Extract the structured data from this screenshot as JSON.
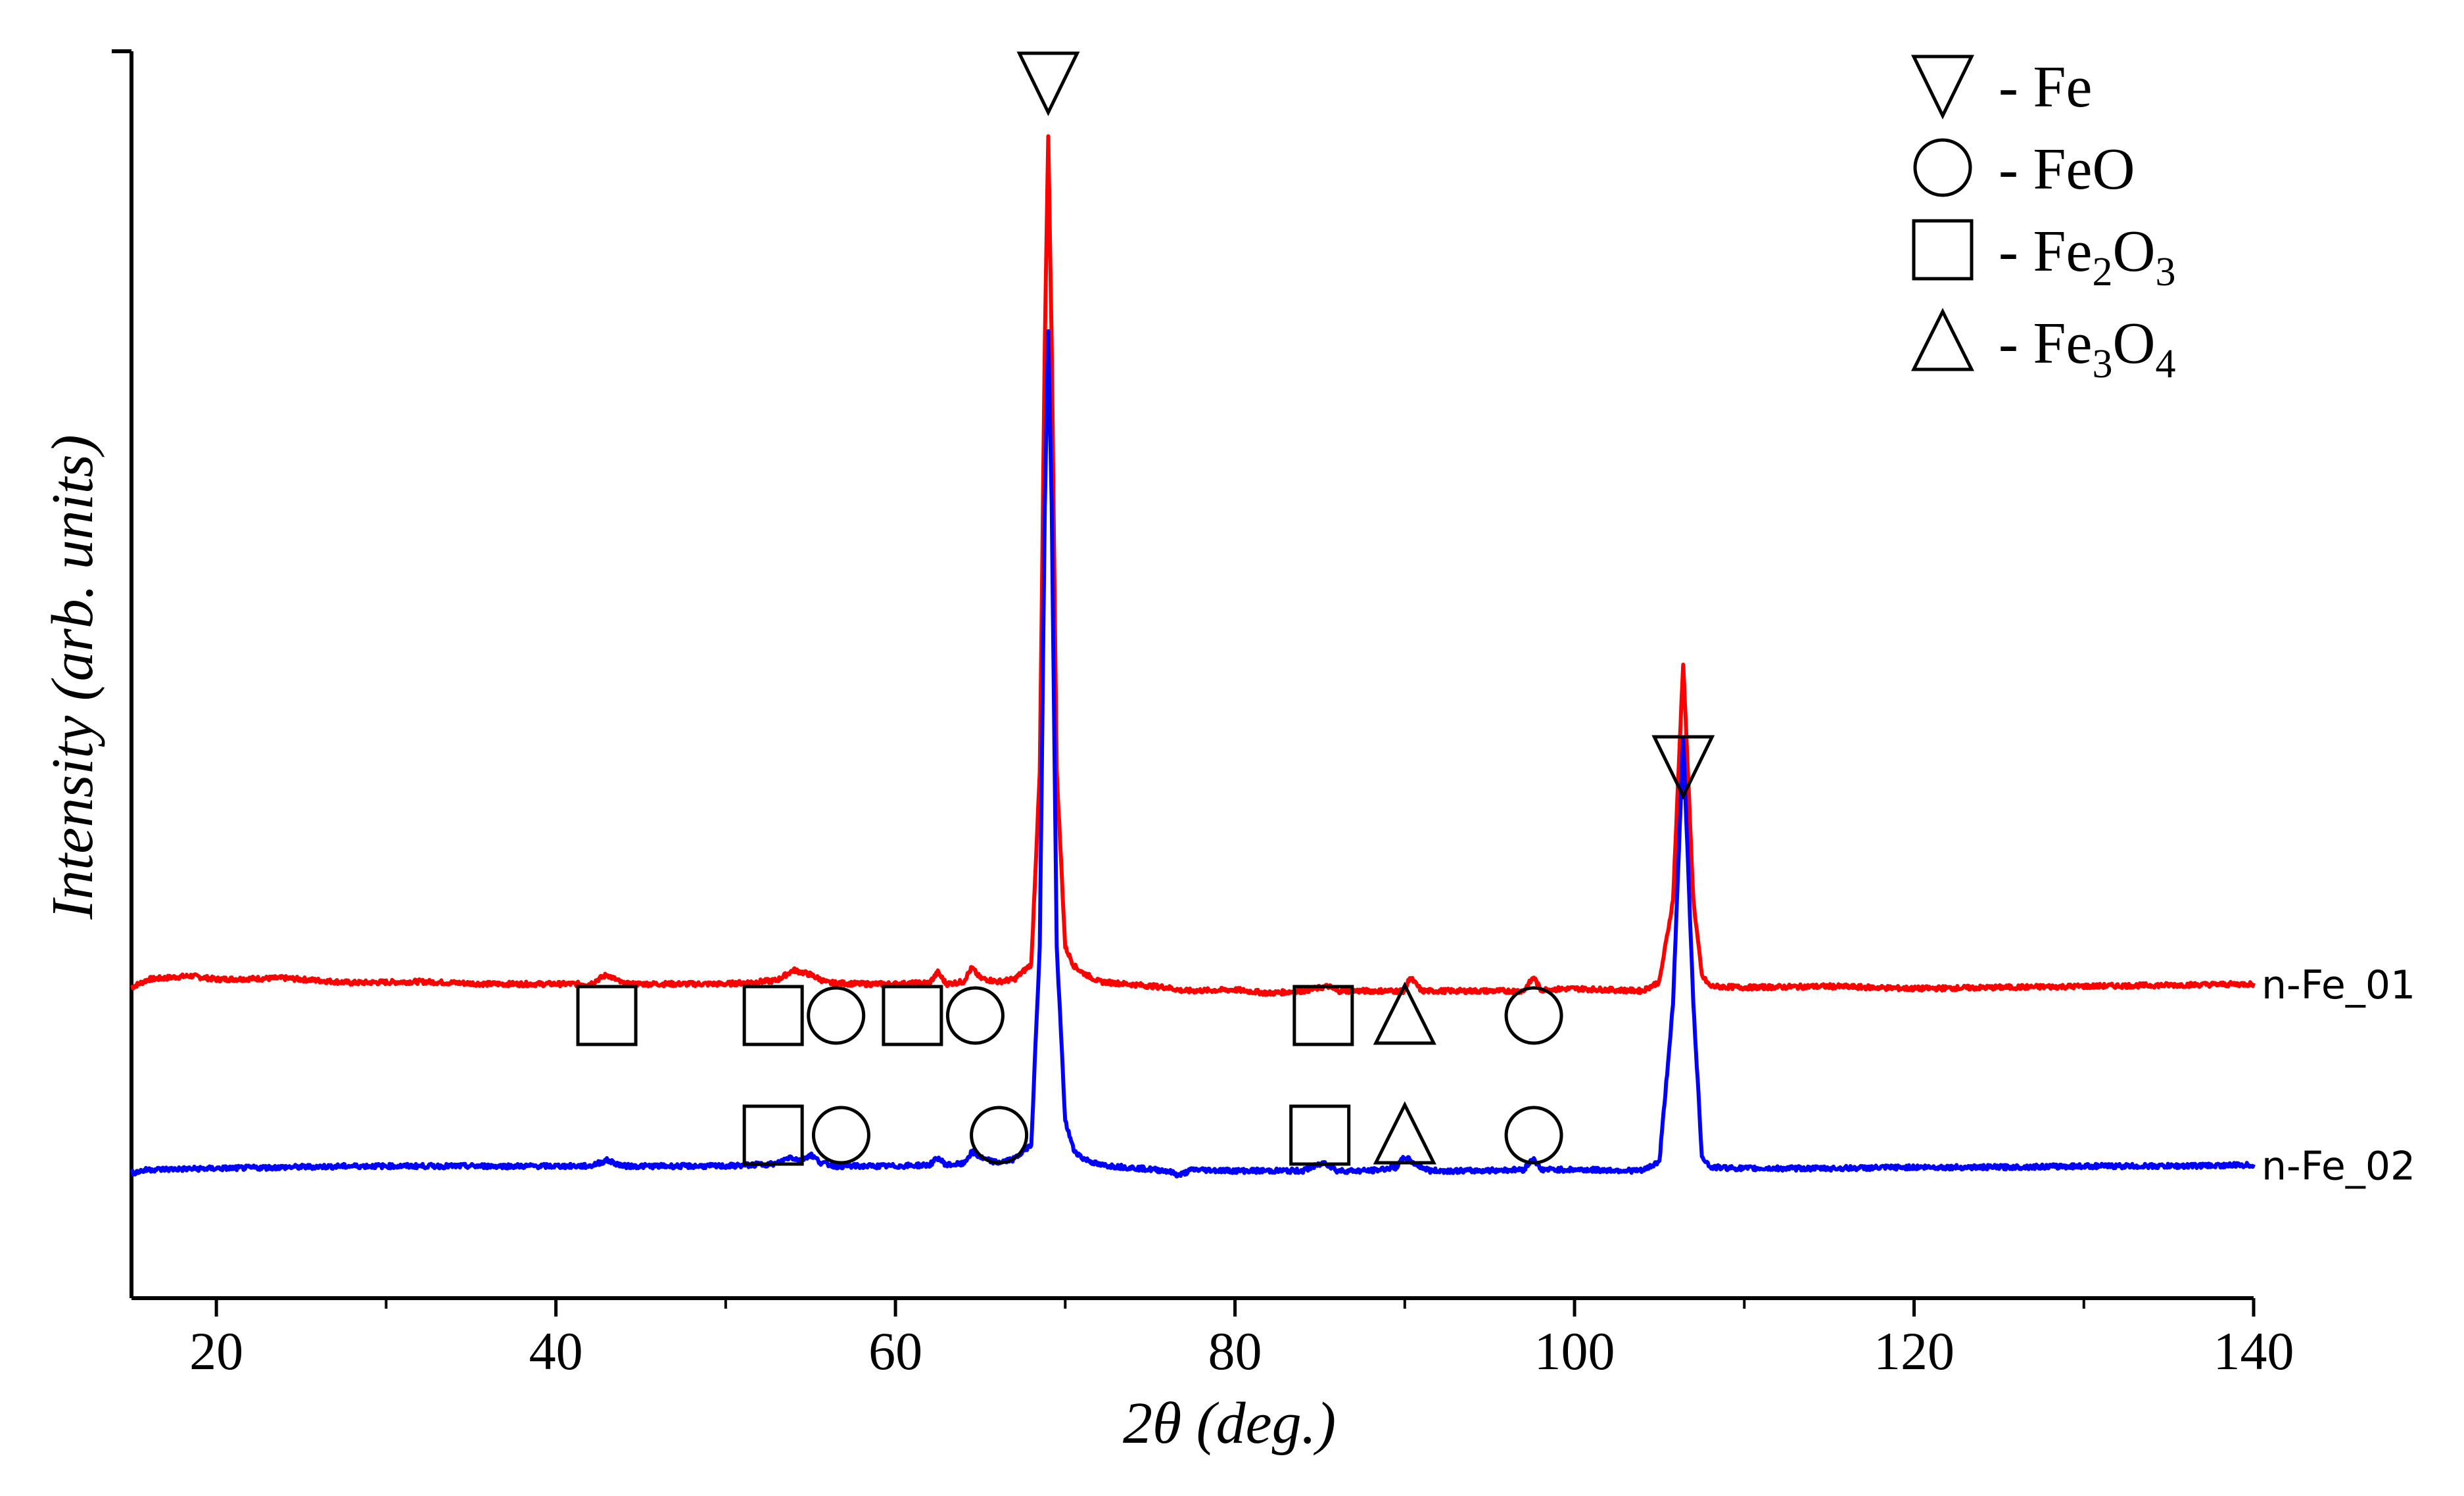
{
  "chart_data": {
    "type": "line",
    "title": "",
    "xlabel": "2θ (deg.)",
    "ylabel": "Intensity (arb. units)",
    "xlim": [
      15,
      140
    ],
    "ylim": [
      0,
      1
    ],
    "xticks": [
      20,
      40,
      60,
      80,
      100,
      120,
      140
    ],
    "grid": false,
    "legend": {
      "placement": "top-right",
      "entries": [
        {
          "symbol": "triangle-down",
          "label": "- Fe"
        },
        {
          "symbol": "circle",
          "label": "- FeO"
        },
        {
          "symbol": "square",
          "label": "- Fe",
          "sub1": "2",
          "mid": "O",
          "sub2": "3"
        },
        {
          "symbol": "triangle-up",
          "label": "- Fe",
          "sub1": "3",
          "mid": "O",
          "sub2": "4"
        }
      ]
    },
    "series": [
      {
        "name": "n-Fe_01",
        "color": "#ff0000",
        "x": [
          15,
          16,
          18.5,
          20,
          24,
          28,
          32,
          36,
          40,
          42,
          43,
          44,
          46,
          50,
          53,
          54,
          55,
          56,
          58,
          60,
          62,
          62.5,
          63,
          64,
          64.5,
          65,
          66,
          67,
          68,
          68.5,
          68.8,
          69.0,
          69.2,
          69.5,
          70,
          70.5,
          71,
          72,
          76,
          77,
          80,
          82,
          84,
          85.5,
          86,
          88,
          90,
          90.3,
          91,
          94,
          97,
          97.6,
          98,
          100,
          104,
          105,
          105.8,
          106.4,
          107,
          107.5,
          108,
          110,
          115,
          120,
          125,
          130,
          135,
          140
        ],
        "y": [
          0.265,
          0.272,
          0.275,
          0.272,
          0.273,
          0.269,
          0.27,
          0.268,
          0.268,
          0.268,
          0.276,
          0.268,
          0.268,
          0.268,
          0.271,
          0.28,
          0.276,
          0.269,
          0.268,
          0.268,
          0.269,
          0.278,
          0.268,
          0.27,
          0.282,
          0.273,
          0.27,
          0.272,
          0.285,
          0.45,
          0.82,
          1.0,
          0.82,
          0.45,
          0.3,
          0.284,
          0.278,
          0.27,
          0.265,
          0.262,
          0.263,
          0.26,
          0.262,
          0.266,
          0.262,
          0.262,
          0.262,
          0.274,
          0.262,
          0.262,
          0.262,
          0.274,
          0.263,
          0.264,
          0.262,
          0.27,
          0.34,
          0.545,
          0.34,
          0.275,
          0.266,
          0.265,
          0.266,
          0.264,
          0.265,
          0.266,
          0.267,
          0.268
        ]
      },
      {
        "name": "n-Fe_02",
        "color": "#0000ff",
        "x": [
          15,
          16,
          20,
          24,
          28,
          32,
          36,
          40,
          42,
          43,
          44,
          46,
          50,
          53,
          53.8,
          54.4,
          55,
          55.6,
          56.5,
          58,
          60,
          62,
          62.5,
          63,
          64,
          64.5,
          65.2,
          66,
          67,
          68,
          68.5,
          68.8,
          69.0,
          69.2,
          69.5,
          70,
          70.5,
          71,
          72,
          76,
          76.7,
          77.5,
          80,
          84,
          85.3,
          86,
          88,
          89.5,
          90,
          90.7,
          91.5,
          94,
          97,
          97.6,
          98,
          100,
          104,
          105,
          105.8,
          106.4,
          107,
          107.5,
          108,
          110,
          115,
          120,
          125,
          130,
          135,
          140
        ],
        "y": [
          0.105,
          0.108,
          0.109,
          0.11,
          0.111,
          0.111,
          0.111,
          0.111,
          0.111,
          0.116,
          0.111,
          0.111,
          0.111,
          0.113,
          0.119,
          0.116,
          0.121,
          0.114,
          0.111,
          0.111,
          0.111,
          0.112,
          0.118,
          0.112,
          0.113,
          0.123,
          0.117,
          0.114,
          0.117,
          0.13,
          0.3,
          0.68,
          0.83,
          0.68,
          0.3,
          0.15,
          0.125,
          0.118,
          0.112,
          0.107,
          0.103,
          0.108,
          0.107,
          0.107,
          0.114,
          0.107,
          0.107,
          0.11,
          0.119,
          0.112,
          0.107,
          0.107,
          0.108,
          0.118,
          0.108,
          0.108,
          0.107,
          0.115,
          0.25,
          0.48,
          0.25,
          0.12,
          0.11,
          0.109,
          0.109,
          0.11,
          0.11,
          0.111,
          0.111,
          0.112
        ]
      }
    ],
    "annotations": [
      {
        "symbol": "triangle-down",
        "x": 69.0,
        "row": "top"
      },
      {
        "symbol": "triangle-down",
        "x": 106.4,
        "row": "fe2"
      },
      {
        "symbol": "square",
        "x": 43.0,
        "row": "upper"
      },
      {
        "symbol": "square",
        "x": 52.8,
        "row": "upper"
      },
      {
        "symbol": "circle",
        "x": 56.5,
        "row": "upper"
      },
      {
        "symbol": "square",
        "x": 61.0,
        "row": "upper"
      },
      {
        "symbol": "circle",
        "x": 64.7,
        "row": "upper"
      },
      {
        "symbol": "square",
        "x": 85.2,
        "row": "upper"
      },
      {
        "symbol": "triangle-up",
        "x": 90.0,
        "row": "upper"
      },
      {
        "symbol": "circle",
        "x": 97.6,
        "row": "upper"
      },
      {
        "symbol": "square",
        "x": 52.8,
        "row": "lower"
      },
      {
        "symbol": "circle",
        "x": 56.8,
        "row": "lower"
      },
      {
        "symbol": "circle",
        "x": 66.1,
        "row": "lower"
      },
      {
        "symbol": "square",
        "x": 85.0,
        "row": "lower"
      },
      {
        "symbol": "triangle-up",
        "x": 90.0,
        "row": "lower"
      },
      {
        "symbol": "circle",
        "x": 97.6,
        "row": "lower"
      }
    ]
  }
}
